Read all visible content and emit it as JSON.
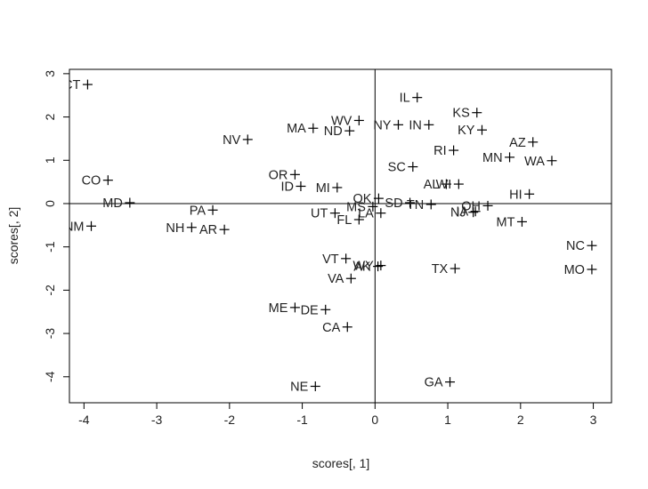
{
  "chart_data": {
    "type": "scatter",
    "title": "",
    "xlabel": "scores[, 1]",
    "ylabel": "scores[, 2]",
    "xlim": [
      -4.2,
      3.25
    ],
    "ylim": [
      -4.6,
      3.1
    ],
    "xticks": [
      -4,
      -3,
      -2,
      -1,
      0,
      1,
      2,
      3
    ],
    "yticks": [
      -4,
      -3,
      -2,
      -1,
      0,
      1,
      2,
      3
    ],
    "reference_lines": {
      "x": 0,
      "y": 0
    },
    "marker": "plus",
    "points": [
      {
        "label": "CT",
        "x": -3.95,
        "y": 2.75
      },
      {
        "label": "IL",
        "x": 0.58,
        "y": 2.45
      },
      {
        "label": "KS",
        "x": 1.4,
        "y": 2.1
      },
      {
        "label": "WV",
        "x": -0.22,
        "y": 1.92
      },
      {
        "label": "NY",
        "x": 0.32,
        "y": 1.82
      },
      {
        "label": "IN",
        "x": 0.74,
        "y": 1.82
      },
      {
        "label": "MA",
        "x": -0.85,
        "y": 1.74
      },
      {
        "label": "ND",
        "x": -0.35,
        "y": 1.68
      },
      {
        "label": "KY",
        "x": 1.47,
        "y": 1.7
      },
      {
        "label": "NV",
        "x": -1.75,
        "y": 1.48
      },
      {
        "label": "AZ",
        "x": 2.17,
        "y": 1.42
      },
      {
        "label": "RI",
        "x": 1.08,
        "y": 1.23
      },
      {
        "label": "MN",
        "x": 1.85,
        "y": 1.07
      },
      {
        "label": "WA",
        "x": 2.43,
        "y": 0.99
      },
      {
        "label": "SC",
        "x": 0.52,
        "y": 0.85
      },
      {
        "label": "OR",
        "x": -1.1,
        "y": 0.67
      },
      {
        "label": "CO",
        "x": -3.67,
        "y": 0.54
      },
      {
        "label": "AL",
        "x": 0.98,
        "y": 0.45
      },
      {
        "label": "WI",
        "x": 1.15,
        "y": 0.45
      },
      {
        "label": "ID",
        "x": -1.02,
        "y": 0.4
      },
      {
        "label": "MI",
        "x": -0.52,
        "y": 0.37
      },
      {
        "label": "HI",
        "x": 2.12,
        "y": 0.22
      },
      {
        "label": "OK",
        "x": 0.05,
        "y": 0.12
      },
      {
        "label": "MD",
        "x": -3.37,
        "y": 0.02
      },
      {
        "label": "SD",
        "x": 0.48,
        "y": 0.02
      },
      {
        "label": "MS",
        "x": -0.03,
        "y": -0.07
      },
      {
        "label": "TN",
        "x": 0.77,
        "y": -0.02
      },
      {
        "label": "OH",
        "x": 1.55,
        "y": -0.05
      },
      {
        "label": "PA",
        "x": -2.23,
        "y": -0.15
      },
      {
        "label": "UT",
        "x": -0.55,
        "y": -0.22
      },
      {
        "label": "LA",
        "x": 0.08,
        "y": -0.22
      },
      {
        "label": "NJ",
        "x": 1.35,
        "y": -0.2
      },
      {
        "label": "IA",
        "x": 1.38,
        "y": -0.18
      },
      {
        "label": "FL",
        "x": -0.22,
        "y": -0.37
      },
      {
        "label": "MT",
        "x": 2.02,
        "y": -0.42
      },
      {
        "label": "NM",
        "x": -3.9,
        "y": -0.52
      },
      {
        "label": "NH",
        "x": -2.52,
        "y": -0.55
      },
      {
        "label": "AR",
        "x": -2.07,
        "y": -0.6
      },
      {
        "label": "NC",
        "x": 2.98,
        "y": -0.97
      },
      {
        "label": "VT",
        "x": -0.4,
        "y": -1.27
      },
      {
        "label": "WY",
        "x": 0.08,
        "y": -1.43
      },
      {
        "label": "AK",
        "x": 0.04,
        "y": -1.45
      },
      {
        "label": "TX",
        "x": 1.1,
        "y": -1.5
      },
      {
        "label": "MO",
        "x": 2.98,
        "y": -1.52
      },
      {
        "label": "VA",
        "x": -0.33,
        "y": -1.73
      },
      {
        "label": "ME",
        "x": -1.1,
        "y": -2.4
      },
      {
        "label": "DE",
        "x": -0.68,
        "y": -2.45
      },
      {
        "label": "CA",
        "x": -0.38,
        "y": -2.85
      },
      {
        "label": "GA",
        "x": 1.03,
        "y": -4.12
      },
      {
        "label": "NE",
        "x": -0.82,
        "y": -4.22
      }
    ]
  }
}
